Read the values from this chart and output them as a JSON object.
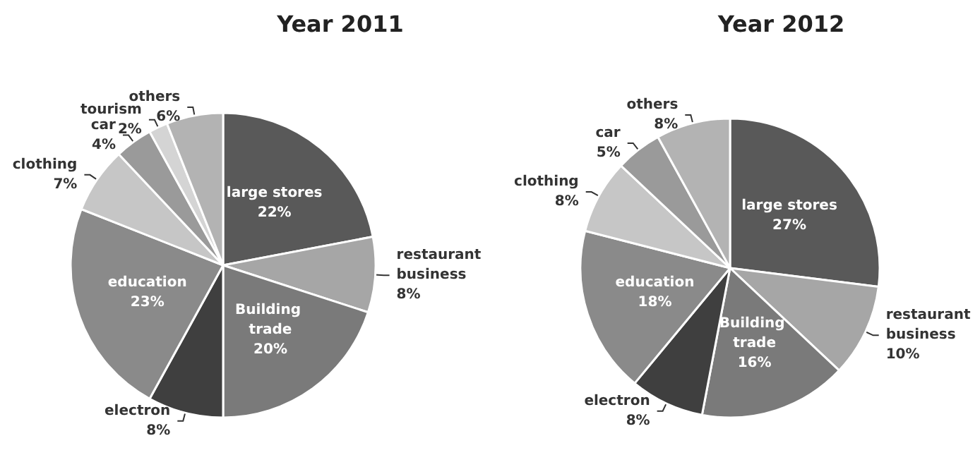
{
  "chart_data": [
    {
      "type": "pie",
      "title": "Year 2011",
      "categories": [
        "large stores",
        "restaurant business",
        "Building trade",
        "electron",
        "education",
        "clothing",
        "car",
        "tourism",
        "others"
      ],
      "values": [
        22,
        8,
        20,
        8,
        23,
        7,
        4,
        2,
        6
      ],
      "colors": [
        "#595959",
        "#a6a6a6",
        "#7a7a7a",
        "#3f3f3f",
        "#8a8a8a",
        "#c6c6c6",
        "#9a9a9a",
        "#d4d4d4",
        "#b3b3b3"
      ],
      "value_labels": [
        "22%",
        "8%",
        "20%",
        "8%",
        "23%",
        "7%",
        "4%",
        "2%",
        "6%"
      ]
    },
    {
      "type": "pie",
      "title": "Year 2012",
      "categories": [
        "large stores",
        "restaurant business",
        "Building trade",
        "electron",
        "education",
        "clothing",
        "car",
        "others"
      ],
      "values": [
        27,
        10,
        16,
        8,
        18,
        8,
        5,
        8
      ],
      "colors": [
        "#595959",
        "#a6a6a6",
        "#7a7a7a",
        "#3f3f3f",
        "#8a8a8a",
        "#c6c6c6",
        "#9a9a9a",
        "#b3b3b3"
      ],
      "value_labels": [
        "27%",
        "10%",
        "16%",
        "8%",
        "18%",
        "8%",
        "5%",
        "8%"
      ]
    }
  ]
}
